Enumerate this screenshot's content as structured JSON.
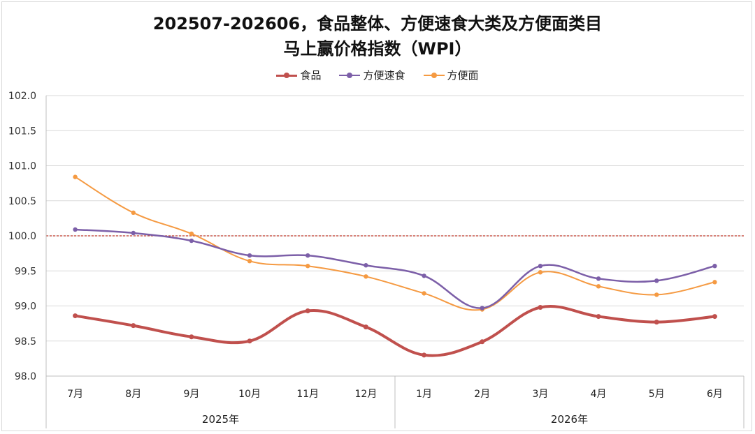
{
  "title_line1": "202507-202606，食品整体、方便速食大类及方便面类目",
  "title_line2": "马上赢价格指数（WPI）",
  "chart_data": {
    "type": "line",
    "title": "202507-202606，食品整体、方便速食大类及方便面类目马上赢价格指数（WPI）",
    "categories": [
      "7月",
      "8月",
      "9月",
      "10月",
      "11月",
      "12月",
      "1月",
      "2月",
      "3月",
      "4月",
      "5月",
      "6月"
    ],
    "groups": [
      {
        "label": "2025年",
        "count": 6
      },
      {
        "label": "2026年",
        "count": 6
      }
    ],
    "yticks": [
      "98.0",
      "98.5",
      "99.0",
      "99.5",
      "100.0",
      "100.5",
      "101.0",
      "101.5",
      "102.0"
    ],
    "ylim": [
      98.0,
      102.0
    ],
    "reference_line": {
      "value": 100.0,
      "color": "#c0392b",
      "style": "dashed"
    },
    "grid": true,
    "legend_position": "top",
    "series": [
      {
        "name": "食品",
        "color": "#c0504d",
        "width": 4,
        "values": [
          98.86,
          98.72,
          98.56,
          98.5,
          98.93,
          98.7,
          98.3,
          98.49,
          98.98,
          98.85,
          98.77,
          98.85
        ]
      },
      {
        "name": "方便速食",
        "color": "#7c5fa8",
        "width": 2.5,
        "values": [
          100.09,
          100.04,
          99.93,
          99.72,
          99.72,
          99.58,
          99.43,
          98.97,
          99.57,
          99.39,
          99.36,
          99.57
        ]
      },
      {
        "name": "方便面",
        "color": "#f59a42",
        "width": 2,
        "values": [
          100.84,
          100.33,
          100.03,
          99.64,
          99.57,
          99.42,
          99.18,
          98.95,
          99.48,
          99.28,
          99.16,
          99.34
        ]
      }
    ]
  }
}
